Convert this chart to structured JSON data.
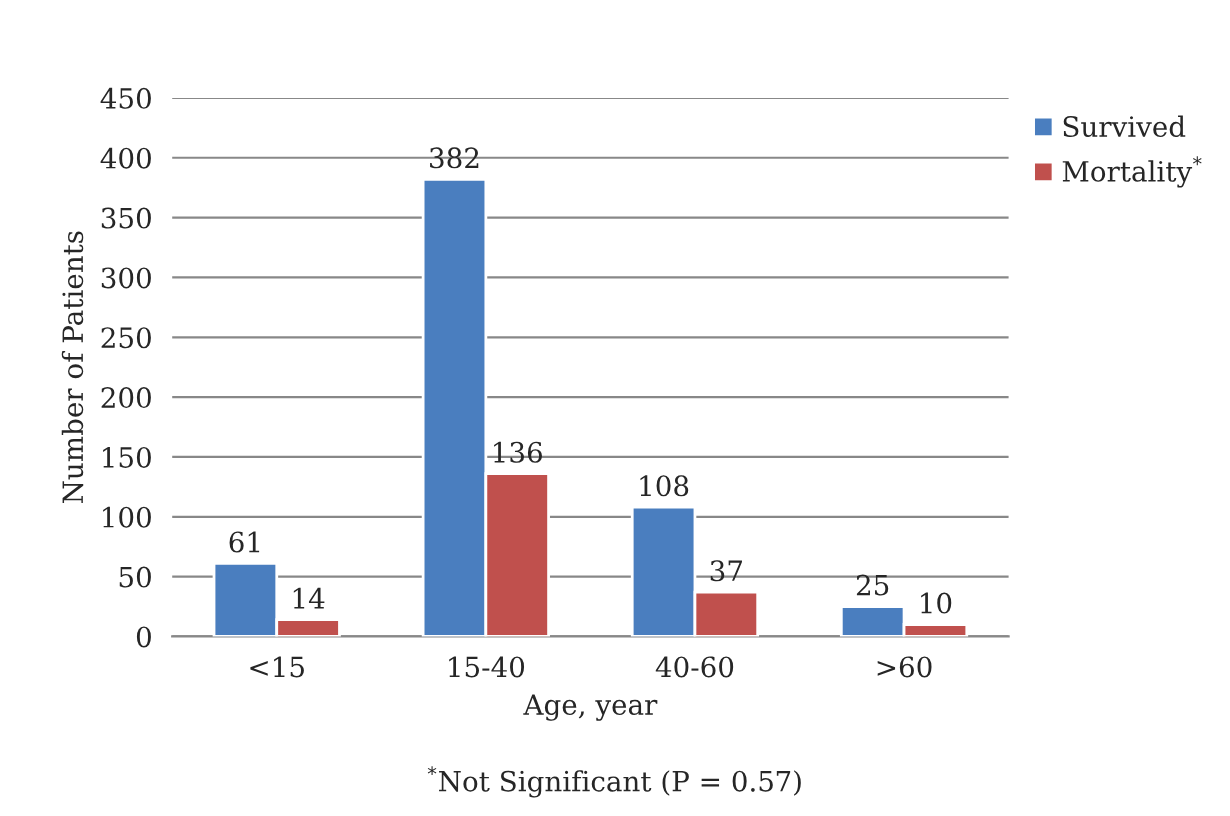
{
  "chart_data": {
    "type": "bar",
    "categories": [
      "<15",
      "15-40",
      "40-60",
      ">60"
    ],
    "series": [
      {
        "name": "Survived",
        "color": "#4a7ebf",
        "values": [
          61,
          382,
          108,
          25
        ]
      },
      {
        "name": "Mortality$^{*}$",
        "color": "#c0504d",
        "values": [
          14,
          136,
          37,
          10
        ]
      }
    ],
    "xlabel": "Age, year",
    "ylabel": "Number of Patients",
    "ylim": [
      0,
      450
    ],
    "yticks": [
      0,
      50,
      100,
      150,
      200,
      250,
      300,
      350,
      400,
      450
    ],
    "grid": "y",
    "legend": "right",
    "data_labels": true,
    "annotations": [
      "$^{*}$Not Significant (P = 0.57)"
    ]
  }
}
